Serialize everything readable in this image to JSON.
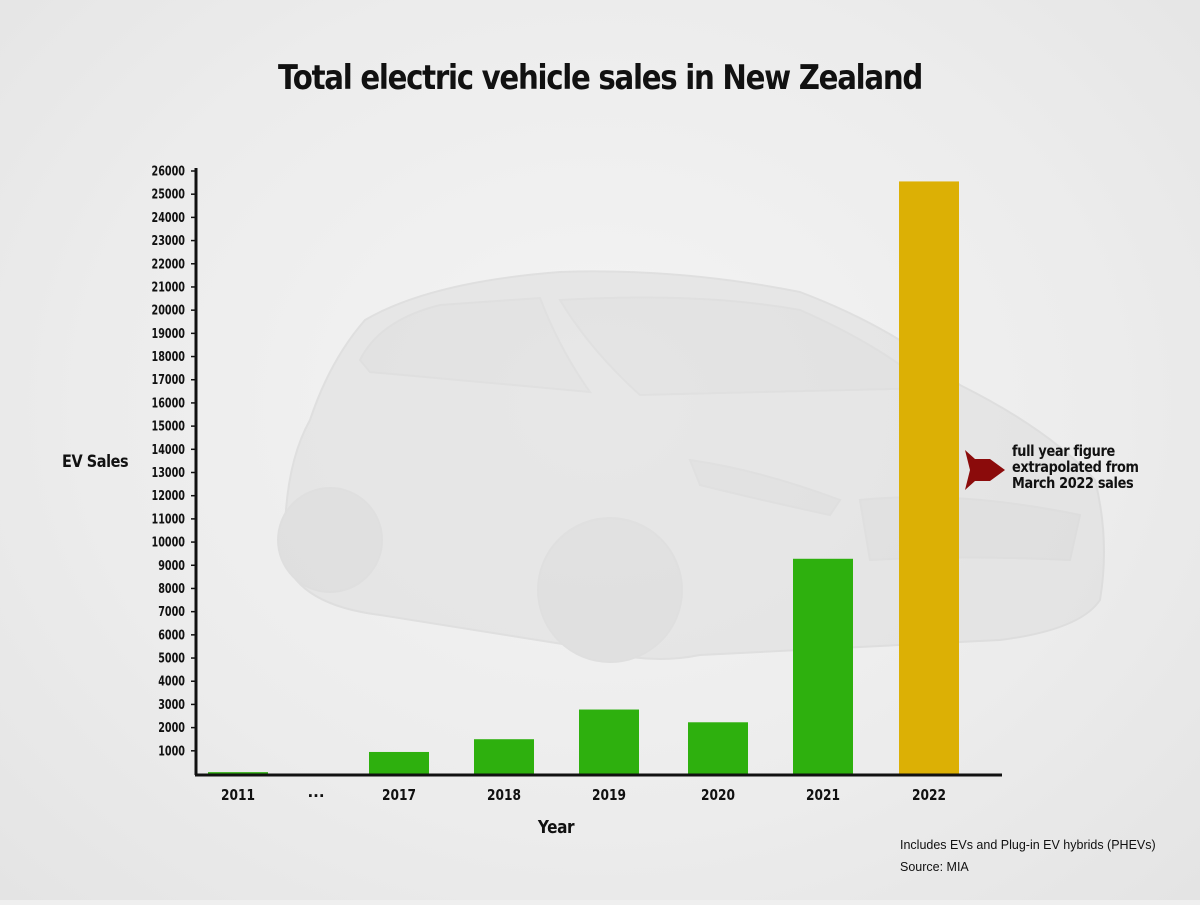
{
  "chart_data": {
    "type": "bar",
    "title": "Total electric vehicle sales in New Zealand",
    "xlabel": "Year",
    "ylabel": "EV Sales",
    "categories": [
      "2011",
      "...",
      "2017",
      "2018",
      "2019",
      "2020",
      "2021",
      "2022"
    ],
    "values": [
      80,
      null,
      950,
      1500,
      2780,
      2230,
      9280,
      25550
    ],
    "yticks": [
      1000,
      2000,
      3000,
      4000,
      5000,
      6000,
      7000,
      8000,
      9000,
      10000,
      11000,
      12000,
      13000,
      14000,
      15000,
      16000,
      17000,
      18000,
      19000,
      20000,
      21000,
      22000,
      23000,
      24000,
      25000,
      26000
    ],
    "ylim": [
      0,
      26000
    ],
    "grid": false,
    "colors": {
      "actual": "#2eb00e",
      "extrapolated": "#dcb005",
      "arrow": "#8b0b0b"
    },
    "extrapolated_category": "2022",
    "annotation": [
      "full year figure",
      "extrapolated from",
      "March 2022 sales"
    ],
    "footnote": "Includes EVs and Plug-in EV hybrids (PHEVs)",
    "source": "Source: MIA"
  }
}
